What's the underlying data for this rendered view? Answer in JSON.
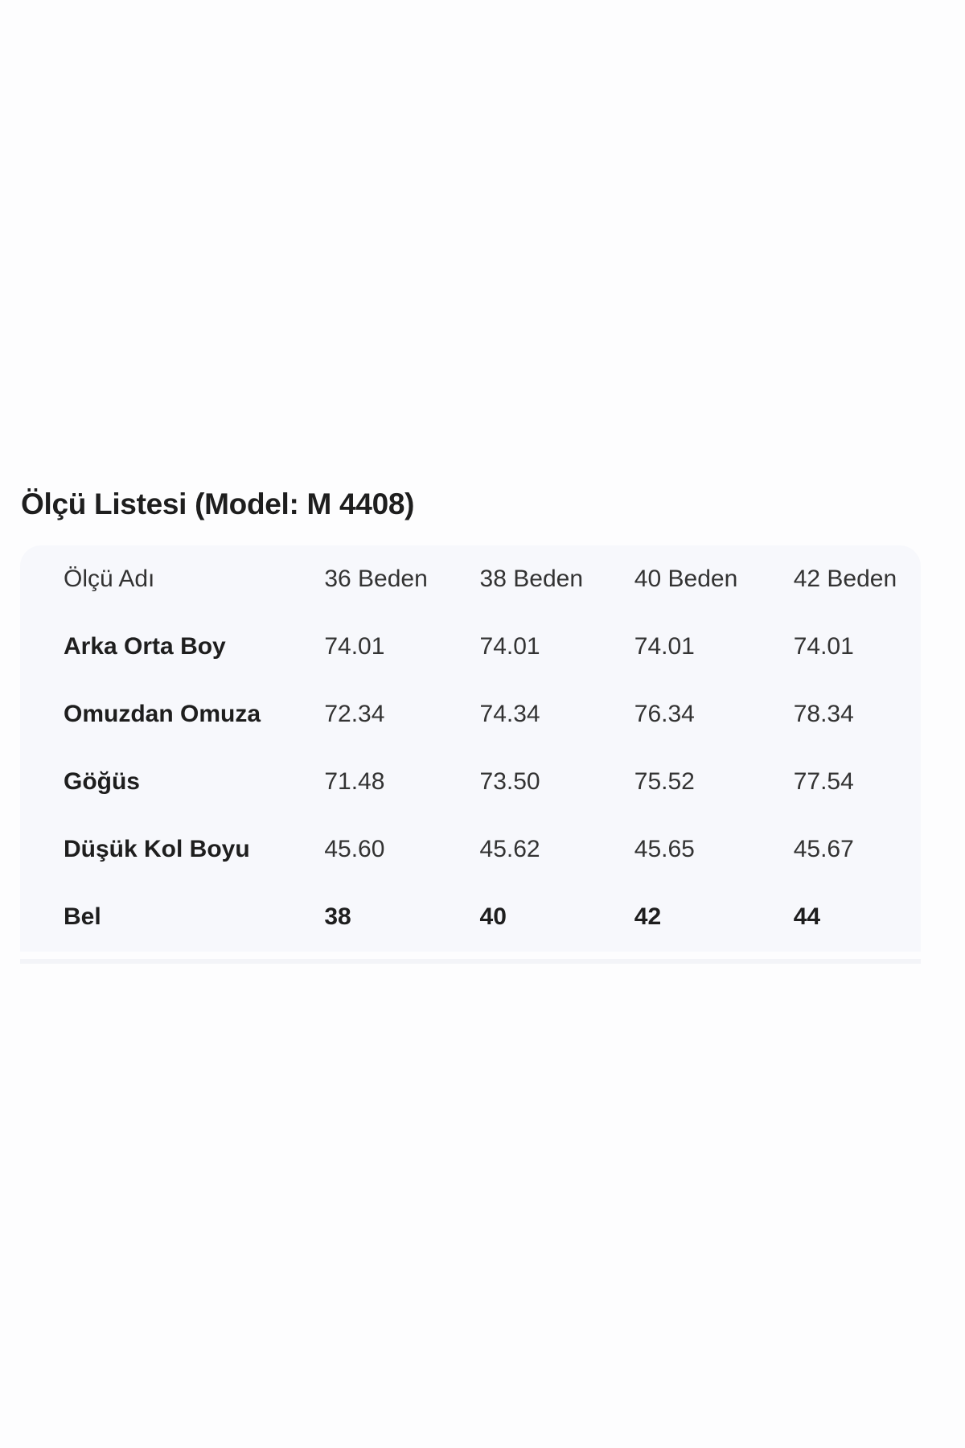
{
  "title": "Ölçü Listesi (Model: M 4408)",
  "table": {
    "headers": [
      "Ölçü Adı",
      "36 Beden",
      "38 Beden",
      "40 Beden",
      "42 Beden"
    ],
    "rows": [
      {
        "name": "Arka Orta Boy",
        "values": [
          "74.01",
          "74.01",
          "74.01",
          "74.01"
        ]
      },
      {
        "name": "Omuzdan Omuza",
        "values": [
          "72.34",
          "74.34",
          "76.34",
          "78.34"
        ]
      },
      {
        "name": "Göğüs",
        "values": [
          "71.48",
          "73.50",
          "75.52",
          "77.54"
        ]
      },
      {
        "name": "Düşük Kol Boyu",
        "values": [
          "45.60",
          "45.62",
          "45.65",
          "45.67"
        ]
      },
      {
        "name": "Bel",
        "values": [
          "38",
          "40",
          "42",
          "44"
        ]
      }
    ]
  }
}
